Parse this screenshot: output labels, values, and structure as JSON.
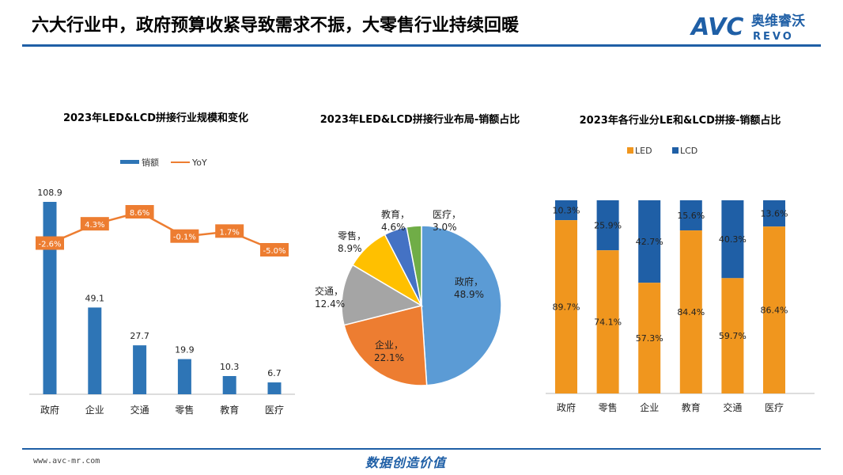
{
  "header": {
    "title": "六大行业中，政府预算收紧导致需求不振，大零售行业持续回暖",
    "logo_text": "AVC",
    "logo_cn": "奥维睿沃",
    "logo_en": "REVO"
  },
  "footer": {
    "url": "www.avc-mr.com",
    "slogan": "数据创造价值"
  },
  "colors": {
    "blue": "#2e75b6",
    "orange": "#ed7d31",
    "pie_gov": "#5b9bd5",
    "pie_ent": "#ed7d31",
    "pie_trans": "#a5a5a5",
    "pie_retail": "#ffc000",
    "pie_edu": "#4472c4",
    "pie_med": "#70ad47",
    "stack_led": "#f0961e",
    "stack_lcd": "#1f5fa6",
    "brand": "#1f5fa6"
  },
  "chart_data": [
    {
      "type": "bar",
      "title": "2023年LED&LCD拼接行业规模和变化",
      "categories": [
        "政府",
        "企业",
        "交通",
        "零售",
        "教育",
        "医疗"
      ],
      "series": [
        {
          "name": "销额",
          "values": [
            108.9,
            49.1,
            27.7,
            19.9,
            10.3,
            6.7
          ]
        },
        {
          "name": "YoY",
          "type": "line",
          "values": [
            -2.6,
            4.3,
            8.6,
            -0.1,
            1.7,
            -5.0
          ],
          "labels": [
            "-2.6%",
            "4.3%",
            "8.6%",
            "-0.1%",
            "1.7%",
            "-5.0%"
          ]
        }
      ],
      "bar_labels": [
        "108.9",
        "49.1",
        "27.7",
        "19.9",
        "10.3",
        "6.7"
      ],
      "ylim": [
        0,
        110
      ],
      "legend": "top"
    },
    {
      "type": "pie",
      "title": "2023年LED&LCD拼接行业布局-销额占比",
      "slices": [
        {
          "label": "政府",
          "value": 48.9,
          "text": "48.9%"
        },
        {
          "label": "企业",
          "value": 22.1,
          "text": "22.1%"
        },
        {
          "label": "交通",
          "value": 12.4,
          "text": "12.4%"
        },
        {
          "label": "零售",
          "value": 8.9,
          "text": "8.9%"
        },
        {
          "label": "教育",
          "value": 4.6,
          "text": "4.6%"
        },
        {
          "label": "医疗",
          "value": 3.0,
          "text": "3.0%"
        }
      ]
    },
    {
      "type": "bar",
      "stacked": true,
      "title": "2023年各行业分LE和&LCD拼接-销额占比",
      "categories": [
        "政府",
        "零售",
        "企业",
        "教育",
        "交通",
        "医疗"
      ],
      "series": [
        {
          "name": "LED",
          "values": [
            89.7,
            74.1,
            57.3,
            84.4,
            59.7,
            86.4
          ],
          "labels": [
            "89.7%",
            "74.1%",
            "57.3%",
            "84.4%",
            "59.7%",
            "86.4%"
          ]
        },
        {
          "name": "LCD",
          "values": [
            10.3,
            25.9,
            42.7,
            15.6,
            40.3,
            13.6
          ],
          "labels": [
            "10.3%",
            "25.9%",
            "42.7%",
            "15.6%",
            "40.3%",
            "13.6%"
          ]
        }
      ],
      "ylim": [
        0,
        100
      ],
      "legend": "top"
    }
  ]
}
